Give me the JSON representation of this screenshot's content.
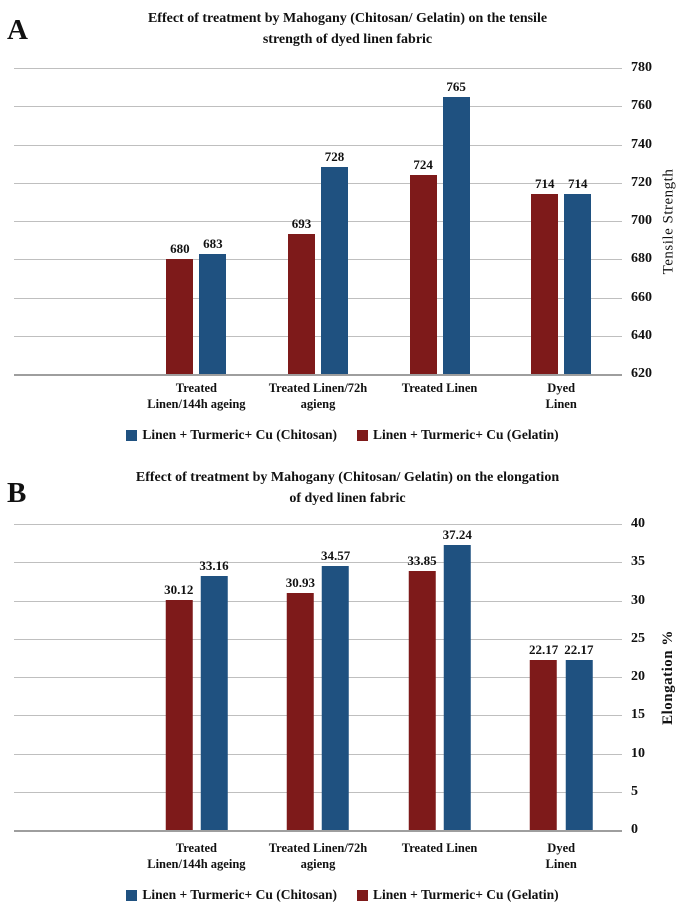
{
  "figure": {
    "panels": [
      {
        "label": "A",
        "title": "Effect of treatment by Mahogany (Chitosan/ Gelatin) on the tensile\nstrength of dyed linen fabric"
      },
      {
        "label": "B",
        "title": "Effect of treatment by Mahogany (Chitosan/ Gelatin) on the elongation\nof dyed linen fabric"
      }
    ]
  },
  "chart_data": [
    {
      "type": "bar",
      "title": "Effect of treatment by Mahogany (Chitosan/ Gelatin) on the tensile strength of dyed linen fabric",
      "categories": [
        "Treated\nLinen/144h ageing",
        "Treated Linen/72h\nagieng",
        "Treated Linen",
        "Dyed Linen"
      ],
      "series": [
        {
          "name": "Linen + Turmeric+ Cu (Gelatin)",
          "color": "#7e1a1a",
          "values": [
            680,
            693,
            724,
            714
          ]
        },
        {
          "name": "Linen + Turmeric+ Cu (Chitosan)",
          "color": "#1f5180",
          "values": [
            683,
            728,
            765,
            714
          ]
        }
      ],
      "legend": [
        {
          "label": "Linen + Turmeric+ Cu (Chitosan)",
          "color": "#1f5180"
        },
        {
          "label": "Linen + Turmeric+ Cu (Gelatin)",
          "color": "#7e1a1a"
        }
      ],
      "xlabel": "",
      "ylabel": "Tensile Strength",
      "ylim": [
        620,
        780
      ],
      "yticks": [
        620,
        640,
        660,
        680,
        700,
        720,
        740,
        760,
        780
      ],
      "grid": true,
      "legend_position": "bottom",
      "axis_side": "right",
      "group_centers_pct": [
        30,
        50,
        70,
        90
      ]
    },
    {
      "type": "bar",
      "title": "Effect of treatment by Mahogany (Chitosan/ Gelatin) on the elongation of dyed linen fabric",
      "categories": [
        "Treated\nLinen/144h ageing",
        "Treated Linen/72h\nagieng",
        "Treated Linen",
        "Dyed Linen"
      ],
      "series": [
        {
          "name": "Linen + Turmeric+ Cu (Gelatin)",
          "color": "#7e1a1a",
          "values": [
            30.12,
            30.93,
            33.85,
            22.17
          ]
        },
        {
          "name": "Linen + Turmeric+ Cu (Chitosan)",
          "color": "#1f5180",
          "values": [
            33.16,
            34.57,
            37.24,
            22.17
          ]
        }
      ],
      "legend": [
        {
          "label": "Linen + Turmeric+ Cu (Chitosan)",
          "color": "#1f5180"
        },
        {
          "label": "Linen + Turmeric+ Cu (Gelatin)",
          "color": "#7e1a1a"
        }
      ],
      "xlabel": "",
      "ylabel": "Elongation %",
      "ylim": [
        0,
        40
      ],
      "yticks": [
        0,
        5,
        10,
        15,
        20,
        25,
        30,
        35,
        40
      ],
      "grid": true,
      "legend_position": "bottom",
      "axis_side": "right",
      "group_centers_pct": [
        30,
        50,
        70,
        90
      ]
    }
  ]
}
